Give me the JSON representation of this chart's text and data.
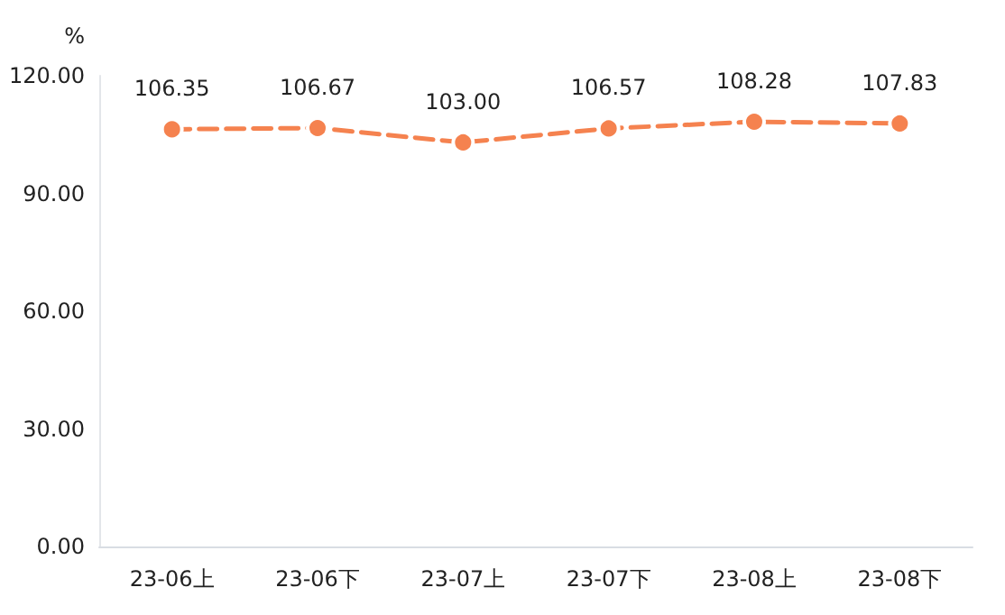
{
  "chart_data": {
    "type": "line",
    "ylabel": "%",
    "categories": [
      "23-06上",
      "23-06下",
      "23-07上",
      "23-07下",
      "23-08上",
      "23-08下"
    ],
    "series": [
      {
        "color": "#f5824f",
        "values": [
          106.35,
          106.67,
          103.0,
          106.57,
          108.28,
          107.83
        ],
        "value_labels": [
          "106.35",
          "106.67",
          "103.00",
          "106.57",
          "108.28",
          "107.83"
        ]
      }
    ],
    "ylim": [
      0,
      120
    ],
    "yticks": [
      {
        "value": 0,
        "label": "0.00"
      },
      {
        "value": 30,
        "label": "30.00"
      },
      {
        "value": 60,
        "label": "60.00"
      },
      {
        "value": 90,
        "label": "90.00"
      },
      {
        "value": 120,
        "label": "120.00"
      }
    ],
    "marker": "circle",
    "line_style": "dashed"
  }
}
